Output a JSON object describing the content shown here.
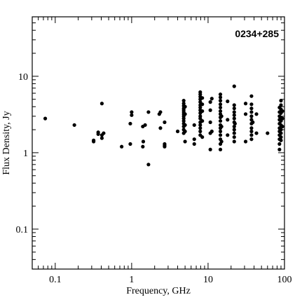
{
  "chart_data": {
    "type": "scatter",
    "title": "0234+285",
    "xlabel": "Frequency, GHz",
    "ylabel": "Flux Density, Jy",
    "xscale": "log",
    "yscale": "log",
    "xlim": [
      0.05,
      100
    ],
    "ylim": [
      0.03,
      60
    ],
    "grid": false,
    "legend": "none",
    "title_position": "top-right",
    "x_tick_labels": [
      "0.1",
      "1",
      "10",
      "100"
    ],
    "x_tick_values": [
      0.1,
      1,
      10,
      100
    ],
    "y_tick_labels": [
      "0.1",
      "1",
      "10"
    ],
    "y_tick_values": [
      0.1,
      1,
      10
    ],
    "marker_color": "#000000",
    "points": [
      [
        0.074,
        2.8
      ],
      [
        0.178,
        2.3
      ],
      [
        0.318,
        1.45
      ],
      [
        0.318,
        1.4
      ],
      [
        0.365,
        1.75
      ],
      [
        0.365,
        1.85
      ],
      [
        0.408,
        4.4
      ],
      [
        0.408,
        1.7
      ],
      [
        0.408,
        1.55
      ],
      [
        0.43,
        1.8
      ],
      [
        0.74,
        1.2
      ],
      [
        0.96,
        1.3
      ],
      [
        0.96,
        2.4
      ],
      [
        1.0,
        3.1
      ],
      [
        1.0,
        3.4
      ],
      [
        1.4,
        1.2
      ],
      [
        1.4,
        2.2
      ],
      [
        1.42,
        1.4
      ],
      [
        1.5,
        2.3
      ],
      [
        1.66,
        0.7
      ],
      [
        1.66,
        3.4
      ],
      [
        2.3,
        3.2
      ],
      [
        2.38,
        3.4
      ],
      [
        2.38,
        2.1
      ],
      [
        2.7,
        1.25
      ],
      [
        2.7,
        1.2
      ],
      [
        2.7,
        1.3
      ],
      [
        2.7,
        2.5
      ],
      [
        4.0,
        1.9
      ],
      [
        4.8,
        1.8
      ],
      [
        4.8,
        2.0
      ],
      [
        4.8,
        2.2
      ],
      [
        4.8,
        2.4
      ],
      [
        4.8,
        2.6
      ],
      [
        4.8,
        2.8
      ],
      [
        4.8,
        3.0
      ],
      [
        4.8,
        3.2
      ],
      [
        4.8,
        3.4
      ],
      [
        4.8,
        3.6
      ],
      [
        4.8,
        3.8
      ],
      [
        4.8,
        4.1
      ],
      [
        4.8,
        4.4
      ],
      [
        4.8,
        4.8
      ],
      [
        5.0,
        1.4
      ],
      [
        5.0,
        1.9
      ],
      [
        5.0,
        2.3
      ],
      [
        5.0,
        3.2
      ],
      [
        5.0,
        4.0
      ],
      [
        6.6,
        1.5
      ],
      [
        6.6,
        2.3
      ],
      [
        6.6,
        1.3
      ],
      [
        7.9,
        1.7
      ],
      [
        7.9,
        1.9
      ],
      [
        7.9,
        2.1
      ],
      [
        7.9,
        2.3
      ],
      [
        7.9,
        2.5
      ],
      [
        7.9,
        2.8
      ],
      [
        7.9,
        3.0
      ],
      [
        7.9,
        3.3
      ],
      [
        7.9,
        3.6
      ],
      [
        7.9,
        3.9
      ],
      [
        7.9,
        4.2
      ],
      [
        7.9,
        4.6
      ],
      [
        7.9,
        5.0
      ],
      [
        7.9,
        5.4
      ],
      [
        7.9,
        5.8
      ],
      [
        7.9,
        6.2
      ],
      [
        8.4,
        1.6
      ],
      [
        8.4,
        2.6
      ],
      [
        8.4,
        3.5
      ],
      [
        8.4,
        4.3
      ],
      [
        8.4,
        5.2
      ],
      [
        10.7,
        1.1
      ],
      [
        10.7,
        1.8
      ],
      [
        10.7,
        2.5
      ],
      [
        10.7,
        3.6
      ],
      [
        10.7,
        4.6
      ],
      [
        11.2,
        5.1
      ],
      [
        11.2,
        1.9
      ],
      [
        14.5,
        1.1
      ],
      [
        14.5,
        1.3
      ],
      [
        14.5,
        1.5
      ],
      [
        14.5,
        1.7
      ],
      [
        14.5,
        1.9
      ],
      [
        14.5,
        2.1
      ],
      [
        14.5,
        2.3
      ],
      [
        14.5,
        2.6
      ],
      [
        14.5,
        2.9
      ],
      [
        14.5,
        3.2
      ],
      [
        14.5,
        3.5
      ],
      [
        14.5,
        3.9
      ],
      [
        14.5,
        4.3
      ],
      [
        14.5,
        4.8
      ],
      [
        14.5,
        5.3
      ],
      [
        14.5,
        5.8
      ],
      [
        15.0,
        1.4
      ],
      [
        15.0,
        2.2
      ],
      [
        15.0,
        3.0
      ],
      [
        18.0,
        1.7
      ],
      [
        18.0,
        2.7
      ],
      [
        18.0,
        4.7
      ],
      [
        22.0,
        1.4
      ],
      [
        22.0,
        1.6
      ],
      [
        22.0,
        1.8
      ],
      [
        22.0,
        2.0
      ],
      [
        22.0,
        2.2
      ],
      [
        22.0,
        2.5
      ],
      [
        22.0,
        2.8
      ],
      [
        22.0,
        3.1
      ],
      [
        22.0,
        3.4
      ],
      [
        22.0,
        3.8
      ],
      [
        22.0,
        4.2
      ],
      [
        22.0,
        7.4
      ],
      [
        22.5,
        2.4
      ],
      [
        31.0,
        1.4
      ],
      [
        31.0,
        3.2
      ],
      [
        31.0,
        4.4
      ],
      [
        37.0,
        1.5
      ],
      [
        37.0,
        1.7
      ],
      [
        37.0,
        1.9
      ],
      [
        37.0,
        2.1
      ],
      [
        37.0,
        2.4
      ],
      [
        37.0,
        2.7
      ],
      [
        37.0,
        3.0
      ],
      [
        37.0,
        3.4
      ],
      [
        37.0,
        3.8
      ],
      [
        37.0,
        4.3
      ],
      [
        37.0,
        5.5
      ],
      [
        38.5,
        2.5
      ],
      [
        43.0,
        3.2
      ],
      [
        43.0,
        1.8
      ],
      [
        60.0,
        1.8
      ],
      [
        86.0,
        1.1
      ],
      [
        86.0,
        1.3
      ],
      [
        86.0,
        1.5
      ],
      [
        86.0,
        1.7
      ],
      [
        86.0,
        1.9
      ],
      [
        86.0,
        2.1
      ],
      [
        86.0,
        2.4
      ],
      [
        86.0,
        2.7
      ],
      [
        86.0,
        3.0
      ],
      [
        86.0,
        3.4
      ],
      [
        86.0,
        3.9
      ],
      [
        90.0,
        1.45
      ],
      [
        90.0,
        1.6
      ],
      [
        90.0,
        1.8
      ],
      [
        90.0,
        2.0
      ],
      [
        90.0,
        2.3
      ],
      [
        90.0,
        2.6
      ],
      [
        90.0,
        2.9
      ],
      [
        90.0,
        3.3
      ],
      [
        90.0,
        3.7
      ],
      [
        90.0,
        4.2
      ],
      [
        90.0,
        4.8
      ],
      [
        94.0,
        2.2
      ],
      [
        94.0,
        2.8
      ],
      [
        94.0,
        3.5
      ]
    ]
  }
}
